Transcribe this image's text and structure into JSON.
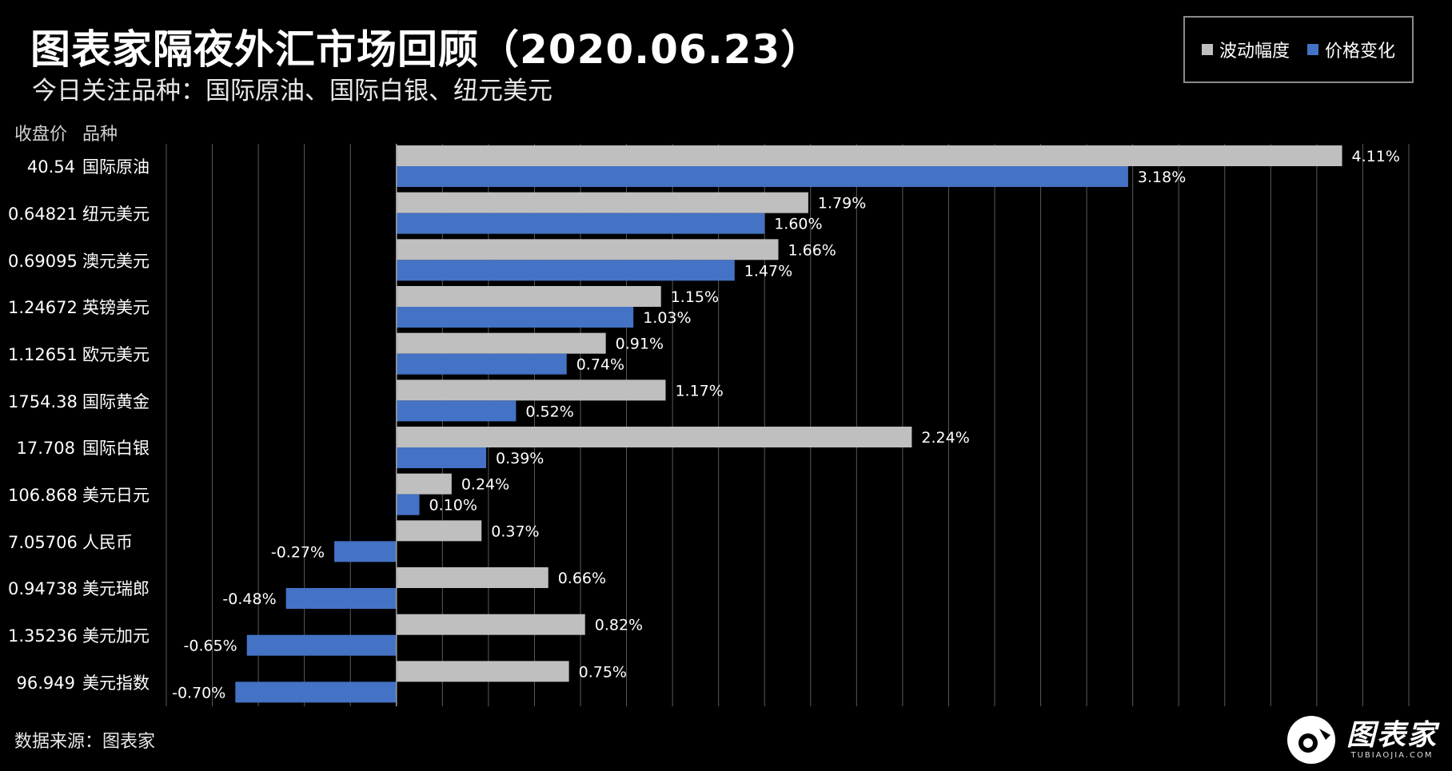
{
  "header": {
    "title": "图表家隔夜外汇市场回顾（2020.06.23）",
    "subtitle": "今日关注品种：国际原油、国际白银、纽元美元"
  },
  "legend": {
    "items": [
      {
        "label": "波动幅度",
        "color": "#bfbfbf"
      },
      {
        "label": "价格变化",
        "color": "#4472c4"
      }
    ]
  },
  "columns": {
    "price": "收盘价",
    "name": "品种"
  },
  "chart_data": {
    "type": "bar",
    "orientation": "horizontal",
    "categories": [
      "国际原油",
      "纽元美元",
      "澳元美元",
      "英镑美元",
      "欧元美元",
      "国际黄金",
      "国际白银",
      "美元日元",
      "人民币",
      "美元瑞郎",
      "美元加元",
      "美元指数"
    ],
    "close_prices": [
      "40.54",
      "0.64821",
      "0.69095",
      "1.24672",
      "1.12651",
      "1754.38",
      "17.708",
      "106.868",
      "7.05706",
      "0.94738",
      "1.35236",
      "96.949"
    ],
    "series": [
      {
        "name": "波动幅度",
        "color": "#bfbfbf",
        "values": [
          4.11,
          1.79,
          1.66,
          1.15,
          0.91,
          1.17,
          2.24,
          0.24,
          0.37,
          0.66,
          0.82,
          0.75
        ],
        "labels": [
          "4.11%",
          "1.79%",
          "1.66%",
          "1.15%",
          "0.91%",
          "1.17%",
          "2.24%",
          "0.24%",
          "0.37%",
          "0.66%",
          "0.82%",
          "0.75%"
        ]
      },
      {
        "name": "价格变化",
        "color": "#4472c4",
        "values": [
          3.18,
          1.6,
          1.47,
          1.03,
          0.74,
          0.52,
          0.39,
          0.1,
          -0.27,
          -0.48,
          -0.65,
          -0.7
        ],
        "labels": [
          "3.18%",
          "1.60%",
          "1.47%",
          "1.03%",
          "0.74%",
          "0.52%",
          "0.39%",
          "0.10%",
          "-0.27%",
          "-0.48%",
          "-0.65%",
          "-0.70%"
        ]
      }
    ],
    "xlim": [
      -1.0,
      4.4
    ],
    "grid": true,
    "legend_position": "top-right",
    "xlabel": "",
    "ylabel": ""
  },
  "footer": {
    "source": "数据来源：图表家"
  },
  "logo": {
    "main": "图表家",
    "sub": "TUBIAOJIA.COM"
  }
}
